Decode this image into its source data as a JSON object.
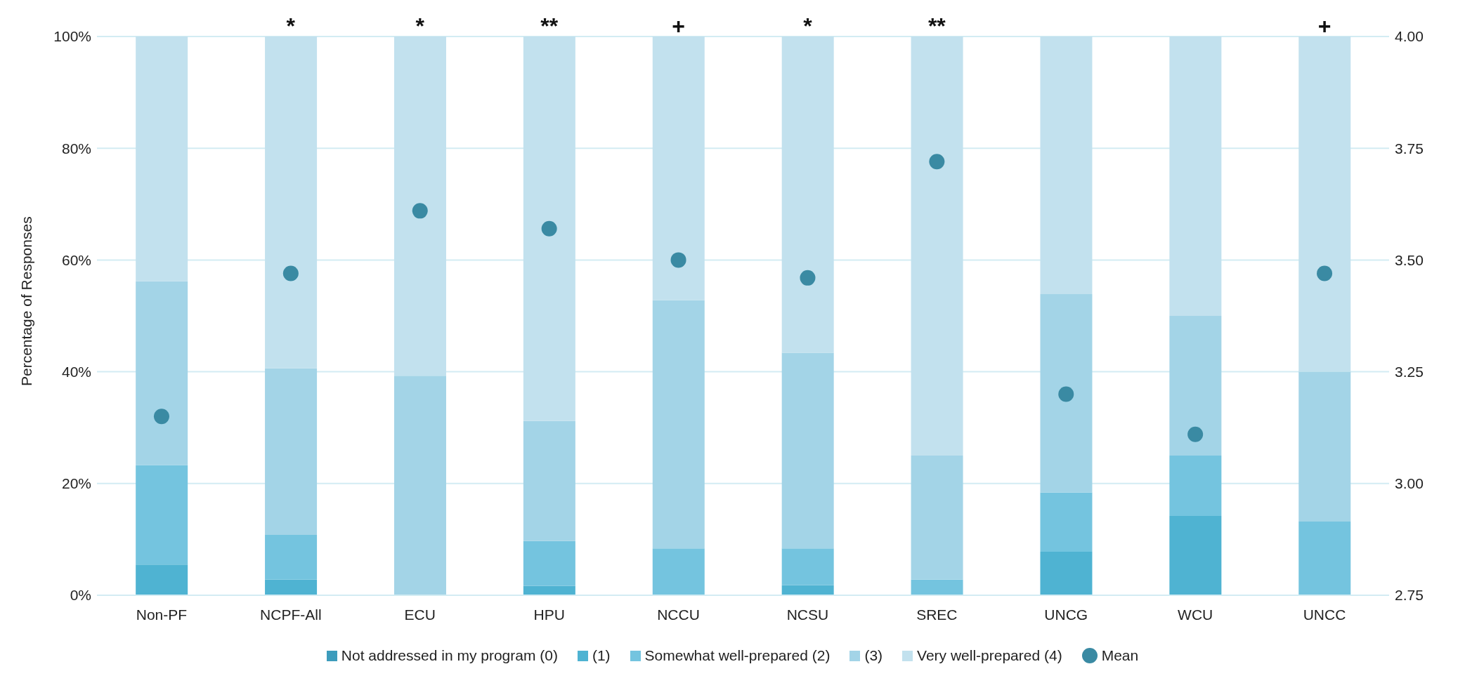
{
  "chart_data": {
    "type": "bar",
    "stacked": true,
    "ylabel": "Percentage of Responses",
    "categories": [
      "Non-PF",
      "NCPF-All",
      "ECU",
      "HPU",
      "NCCU",
      "NCSU",
      "SREC",
      "UNCG",
      "WCU",
      "UNCC"
    ],
    "series": [
      {
        "name": "Not addressed in my program (0)",
        "color": "#3d9cbc",
        "values": [
          0,
          0,
          0,
          0,
          0,
          0,
          0,
          0,
          0,
          0
        ]
      },
      {
        "name": "(1)",
        "color": "#4fb3d2",
        "values": [
          5.5,
          2.8,
          0,
          1.7,
          0,
          1.8,
          0,
          7.8,
          14.2,
          0
        ]
      },
      {
        "name": "Somewhat well-prepared (2)",
        "color": "#74c4df",
        "values": [
          17.8,
          8.0,
          0,
          8.0,
          8.4,
          6.6,
          2.8,
          10.6,
          10.8,
          13.2
        ]
      },
      {
        "name": "(3)",
        "color": "#a3d4e7",
        "values": [
          32.9,
          29.8,
          39.3,
          21.5,
          44.4,
          35.0,
          22.2,
          35.5,
          25.0,
          26.8
        ]
      },
      {
        "name": "Very well-prepared (4)",
        "color": "#c2e1ee",
        "values": [
          43.8,
          59.4,
          60.7,
          68.8,
          47.2,
          56.6,
          75.0,
          46.1,
          50.0,
          60.0
        ]
      },
      {
        "name": "Mean",
        "type": "scatter",
        "axis": "y2",
        "color": "#3a8aa3",
        "values": [
          3.15,
          3.47,
          3.61,
          3.57,
          3.5,
          3.46,
          3.72,
          3.2,
          3.11,
          3.47
        ]
      }
    ],
    "ylim": [
      0,
      100
    ],
    "yticks": [
      {
        "value": 0,
        "label": "0%"
      },
      {
        "value": 20,
        "label": "20%"
      },
      {
        "value": 40,
        "label": "40%"
      },
      {
        "value": 60,
        "label": "60%"
      },
      {
        "value": 80,
        "label": "80%"
      },
      {
        "value": 100,
        "label": "100%"
      }
    ],
    "y2lim": [
      2.75,
      4
    ],
    "y2ticks": [
      {
        "value": 2.75,
        "label": "2.75"
      },
      {
        "value": 3,
        "label": "3.00"
      },
      {
        "value": 3.25,
        "label": "3.25"
      },
      {
        "value": 3.5,
        "label": "3.50"
      },
      {
        "value": 3.75,
        "label": "3.75"
      },
      {
        "value": 4,
        "label": "4.00"
      }
    ],
    "annotations": [
      {
        "text": "*",
        "x": "NCPF-All",
        "y": 100
      },
      {
        "text": "*",
        "x": "ECU",
        "y": 100
      },
      {
        "text": "**",
        "x": "HPU",
        "y": 100
      },
      {
        "text": "+",
        "x": "NCCU",
        "y": 100
      },
      {
        "text": "*",
        "x": "NCSU",
        "y": 100
      },
      {
        "text": "**",
        "x": "SREC",
        "y": 100
      },
      {
        "text": "+",
        "x": "UNCC",
        "y": 100
      }
    ],
    "grid": "y",
    "legend": "bottom",
    "marker": "circle"
  }
}
